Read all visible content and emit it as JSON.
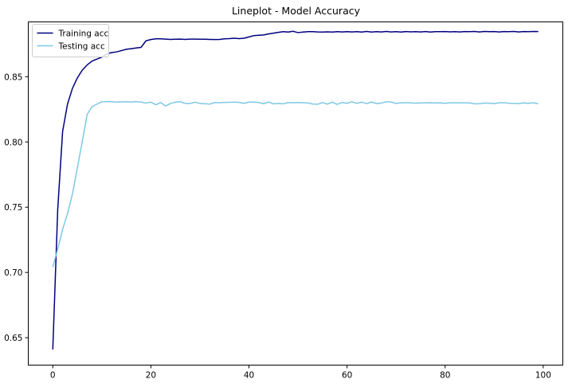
{
  "chart_data": {
    "type": "line",
    "title": "Lineplot - Model Accuracy",
    "xlabel": "",
    "ylabel": "",
    "xlim": [
      -5,
      104
    ],
    "ylim": [
      0.629,
      0.892
    ],
    "xticks": [
      0,
      20,
      40,
      60,
      80,
      100
    ],
    "yticks": [
      0.65,
      0.7,
      0.75,
      0.8,
      0.85
    ],
    "xtick_labels": [
      "0",
      "20",
      "40",
      "60",
      "80",
      "100"
    ],
    "ytick_labels": [
      "0.65",
      "0.70",
      "0.75",
      "0.80",
      "0.85"
    ],
    "grid": false,
    "legend": {
      "position": "top-left"
    },
    "series": [
      {
        "name": "Training acc",
        "color": "#000080",
        "x": [
          0,
          1,
          2,
          3,
          4,
          5,
          6,
          7,
          8,
          9,
          10,
          11,
          12,
          13,
          14,
          15,
          16,
          17,
          18,
          19,
          20,
          21,
          22,
          23,
          24,
          25,
          26,
          27,
          28,
          29,
          30,
          31,
          32,
          33,
          34,
          35,
          36,
          37,
          38,
          39,
          40,
          41,
          42,
          43,
          44,
          45,
          46,
          47,
          48,
          49,
          50,
          51,
          52,
          53,
          54,
          55,
          56,
          57,
          58,
          59,
          60,
          61,
          62,
          63,
          64,
          65,
          66,
          67,
          68,
          69,
          70,
          71,
          72,
          73,
          74,
          75,
          76,
          77,
          78,
          79,
          80,
          81,
          82,
          83,
          84,
          85,
          86,
          87,
          88,
          89,
          90,
          91,
          92,
          93,
          94,
          95,
          96,
          97,
          98,
          99
        ],
        "y": [
          0.641,
          0.748,
          0.808,
          0.829,
          0.841,
          0.849,
          0.855,
          0.859,
          0.862,
          0.8635,
          0.865,
          0.8675,
          0.8685,
          0.869,
          0.87,
          0.871,
          0.8715,
          0.872,
          0.8725,
          0.8775,
          0.8785,
          0.879,
          0.879,
          0.8788,
          0.8786,
          0.8787,
          0.8788,
          0.8786,
          0.8788,
          0.8788,
          0.8787,
          0.8787,
          0.8786,
          0.8785,
          0.8786,
          0.879,
          0.8792,
          0.8795,
          0.8792,
          0.8795,
          0.8805,
          0.8815,
          0.8818,
          0.882,
          0.8828,
          0.8834,
          0.884,
          0.8845,
          0.8842,
          0.8848,
          0.8838,
          0.8842,
          0.8845,
          0.8845,
          0.8843,
          0.8842,
          0.8844,
          0.8842,
          0.8845,
          0.8843,
          0.8845,
          0.8843,
          0.8845,
          0.8842,
          0.8847,
          0.8842,
          0.8845,
          0.8843,
          0.8847,
          0.8843,
          0.8845,
          0.8842,
          0.8846,
          0.8844,
          0.8845,
          0.8843,
          0.8846,
          0.8842,
          0.8845,
          0.8845,
          0.8846,
          0.8844,
          0.8845,
          0.8843,
          0.8846,
          0.8845,
          0.8847,
          0.8843,
          0.8847,
          0.8845,
          0.8846,
          0.8843,
          0.8846,
          0.8845,
          0.8847,
          0.8843,
          0.8846,
          0.8845,
          0.8847,
          0.8846
        ]
      },
      {
        "name": "Testing acc",
        "color": "#7ec8e3",
        "x": [
          0,
          1,
          2,
          3,
          4,
          5,
          6,
          7,
          8,
          9,
          10,
          11,
          12,
          13,
          14,
          15,
          16,
          17,
          18,
          19,
          20,
          21,
          22,
          23,
          24,
          25,
          26,
          27,
          28,
          29,
          30,
          31,
          32,
          33,
          34,
          35,
          36,
          37,
          38,
          39,
          40,
          41,
          42,
          43,
          44,
          45,
          46,
          47,
          48,
          49,
          50,
          51,
          52,
          53,
          54,
          55,
          56,
          57,
          58,
          59,
          60,
          61,
          62,
          63,
          64,
          65,
          66,
          67,
          68,
          69,
          70,
          71,
          72,
          73,
          74,
          75,
          76,
          77,
          78,
          79,
          80,
          81,
          82,
          83,
          84,
          85,
          86,
          87,
          88,
          89,
          90,
          91,
          92,
          93,
          94,
          95,
          96,
          97,
          98,
          99
        ],
        "y": [
          0.704,
          0.718,
          0.733,
          0.745,
          0.76,
          0.78,
          0.8,
          0.821,
          0.827,
          0.829,
          0.8308,
          0.831,
          0.8308,
          0.8305,
          0.8307,
          0.8308,
          0.8306,
          0.8309,
          0.8305,
          0.8298,
          0.8305,
          0.8285,
          0.8302,
          0.8275,
          0.8295,
          0.8305,
          0.8308,
          0.8296,
          0.8294,
          0.8305,
          0.8295,
          0.8293,
          0.829,
          0.8302,
          0.8301,
          0.8303,
          0.8304,
          0.8305,
          0.8303,
          0.8296,
          0.8305,
          0.8305,
          0.8302,
          0.8293,
          0.8306,
          0.8292,
          0.8295,
          0.8292,
          0.8302,
          0.8301,
          0.8302,
          0.8301,
          0.8299,
          0.8291,
          0.8289,
          0.8302,
          0.829,
          0.8305,
          0.8288,
          0.8303,
          0.8296,
          0.8308,
          0.8296,
          0.8305,
          0.8294,
          0.8306,
          0.8294,
          0.8298,
          0.8308,
          0.8306,
          0.8295,
          0.83,
          0.8301,
          0.83,
          0.8297,
          0.8299,
          0.83,
          0.8301,
          0.8299,
          0.83,
          0.8296,
          0.83,
          0.83,
          0.83,
          0.83,
          0.8299,
          0.8292,
          0.8293,
          0.8298,
          0.8297,
          0.8294,
          0.83,
          0.8301,
          0.8297,
          0.8295,
          0.8294,
          0.8299,
          0.8296,
          0.83,
          0.8293
        ]
      }
    ]
  }
}
